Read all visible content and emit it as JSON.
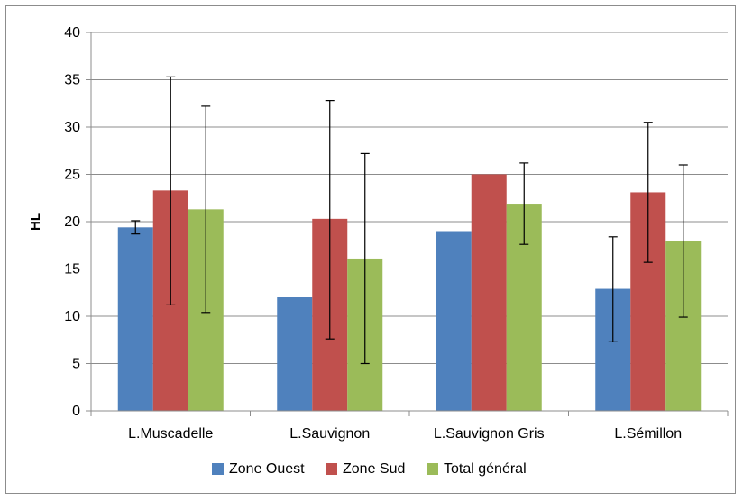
{
  "chart_data": {
    "type": "bar",
    "categories": [
      "L.Muscadelle",
      "L.Sauvignon",
      "L.Sauvignon Gris",
      "L.Sémillon"
    ],
    "series": [
      {
        "name": "Zone Ouest",
        "color": "#4f81bd",
        "values": [
          19.4,
          12.0,
          19.0,
          12.9
        ],
        "error_low": [
          18.7,
          null,
          null,
          7.3
        ],
        "error_high": [
          20.1,
          null,
          null,
          18.4
        ]
      },
      {
        "name": "Zone Sud",
        "color": "#c0504d",
        "values": [
          23.3,
          20.3,
          25.0,
          23.1
        ],
        "error_low": [
          11.2,
          7.6,
          null,
          15.7
        ],
        "error_high": [
          35.3,
          32.8,
          null,
          30.5
        ]
      },
      {
        "name": "Total général",
        "color": "#9bbb59",
        "values": [
          21.3,
          16.1,
          21.9,
          18.0
        ],
        "error_low": [
          10.4,
          5.0,
          17.6,
          9.9
        ],
        "error_high": [
          32.2,
          27.2,
          26.2,
          26.0
        ]
      }
    ],
    "xlabel": "",
    "ylabel": "HL",
    "ylim": [
      0,
      40
    ],
    "yticks": [
      "0",
      "5",
      "10",
      "15",
      "20",
      "25",
      "30",
      "35",
      "40"
    ],
    "grid": true,
    "legend_position": "bottom"
  }
}
